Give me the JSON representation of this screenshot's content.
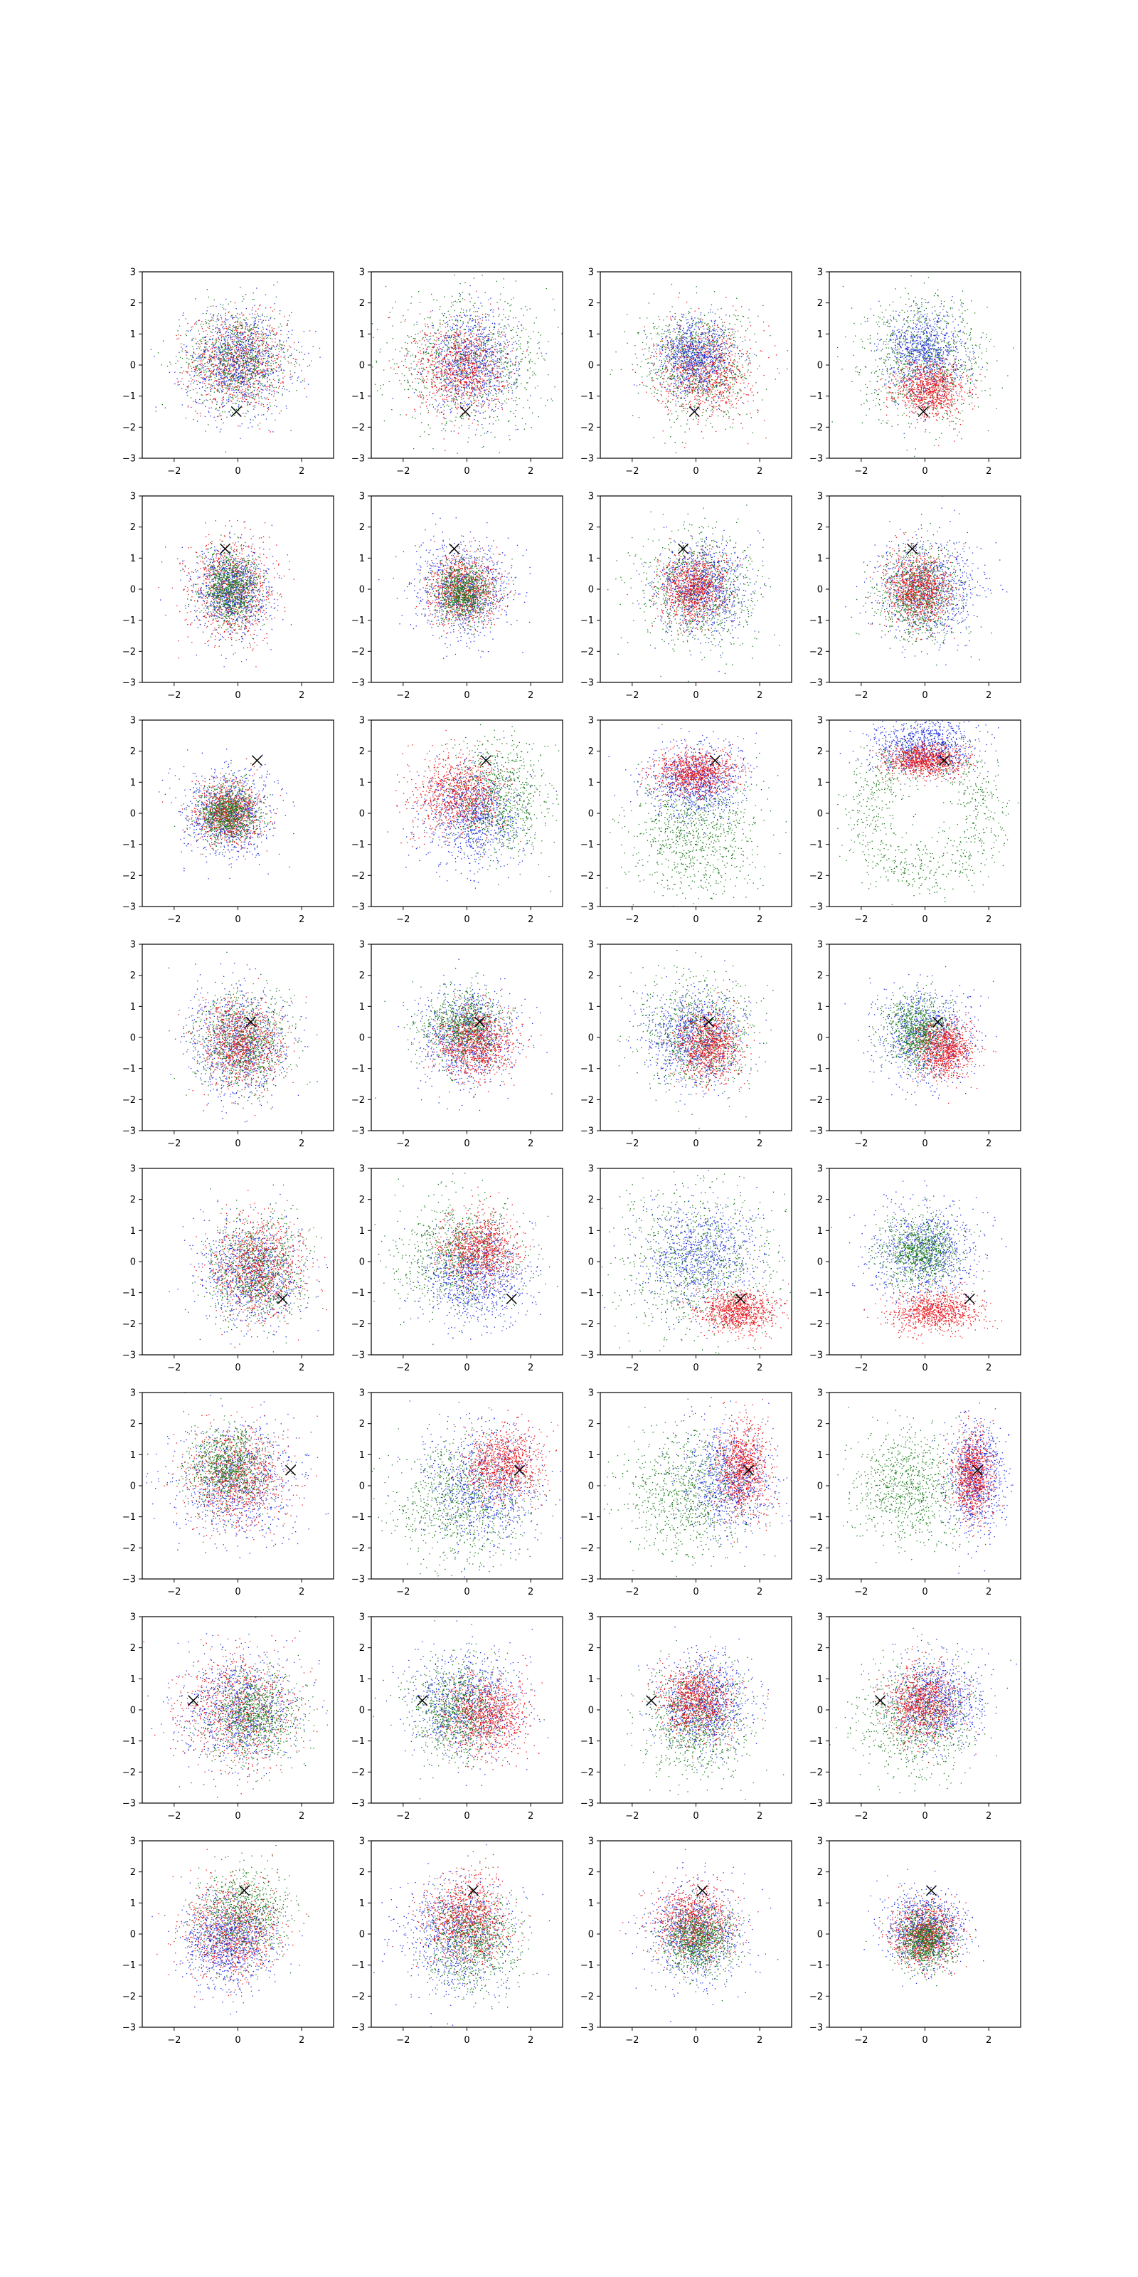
{
  "figure": {
    "rows": 8,
    "cols": 4,
    "background": "#ffffff"
  },
  "chart_data": {
    "type": "scatter",
    "xlim": [
      -3,
      3
    ],
    "ylim": [
      -3,
      3
    ],
    "xticks": [
      -2,
      0,
      2
    ],
    "yticks": [
      -3,
      -2,
      -1,
      0,
      1,
      2,
      3
    ],
    "xtick_labels": [
      "−2",
      "0",
      "2"
    ],
    "ytick_labels": [
      "−3",
      "−2",
      "−1",
      "0",
      "1",
      "2",
      "3"
    ],
    "title": "",
    "xlabel": "",
    "ylabel": "",
    "grid": false,
    "legend": "none",
    "colors": {
      "red": "#e8141a",
      "green": "#1a7a1a",
      "blue": "#2030e0",
      "marker": "#000000"
    },
    "marker_symbol": "x",
    "panels": [
      {
        "marker": [
          -0.05,
          -1.5
        ],
        "series": [
          {
            "color": "red",
            "cx": 0.0,
            "cy": 0.1,
            "sx": 0.75,
            "sy": 0.75
          },
          {
            "color": "green",
            "cx": 0.0,
            "cy": 0.2,
            "sx": 0.8,
            "sy": 0.8
          },
          {
            "color": "blue",
            "cx": 0.0,
            "cy": 0.1,
            "sx": 0.85,
            "sy": 0.85
          }
        ]
      },
      {
        "marker": [
          -0.05,
          -1.5
        ],
        "series": [
          {
            "color": "green",
            "cx": 0.0,
            "cy": 0.1,
            "sx": 1.3,
            "sy": 1.05
          },
          {
            "color": "blue",
            "cx": 0.2,
            "cy": 0.1,
            "sx": 0.7,
            "sy": 0.8
          },
          {
            "color": "red",
            "cx": -0.2,
            "cy": -0.1,
            "sx": 0.7,
            "sy": 0.75
          }
        ]
      },
      {
        "marker": [
          -0.05,
          -1.5
        ],
        "series": [
          {
            "color": "green",
            "cx": 0.0,
            "cy": 0.0,
            "sx": 0.9,
            "sy": 0.9
          },
          {
            "color": "red",
            "cx": 0.3,
            "cy": -0.2,
            "sx": 0.7,
            "sy": 0.75
          },
          {
            "color": "blue",
            "cx": 0.0,
            "cy": 0.3,
            "sx": 0.6,
            "sy": 0.6
          }
        ]
      },
      {
        "marker": [
          -0.05,
          -1.5
        ],
        "series": [
          {
            "color": "green",
            "cx": 0.0,
            "cy": 0.1,
            "sx": 1.0,
            "sy": 1.0
          },
          {
            "color": "blue",
            "cx": 0.0,
            "cy": 0.4,
            "sx": 0.6,
            "sy": 0.7
          },
          {
            "color": "red",
            "cx": 0.2,
            "cy": -0.8,
            "sx": 0.55,
            "sy": 0.45
          }
        ]
      },
      {
        "marker": [
          -0.4,
          1.3
        ],
        "series": [
          {
            "color": "red",
            "cx": -0.2,
            "cy": 0.0,
            "sx": 0.65,
            "sy": 0.8
          },
          {
            "color": "blue",
            "cx": -0.2,
            "cy": -0.1,
            "sx": 0.6,
            "sy": 0.7
          },
          {
            "color": "green",
            "cx": -0.2,
            "cy": 0.0,
            "sx": 0.45,
            "sy": 0.6
          }
        ]
      },
      {
        "marker": [
          -0.4,
          1.3
        ],
        "series": [
          {
            "color": "blue",
            "cx": -0.1,
            "cy": 0.0,
            "sx": 0.75,
            "sy": 0.75
          },
          {
            "color": "red",
            "cx": -0.1,
            "cy": 0.0,
            "sx": 0.55,
            "sy": 0.55
          },
          {
            "color": "green",
            "cx": -0.1,
            "cy": -0.1,
            "sx": 0.45,
            "sy": 0.45
          }
        ]
      },
      {
        "marker": [
          -0.4,
          1.3
        ],
        "series": [
          {
            "color": "green",
            "cx": 0.0,
            "cy": 0.0,
            "sx": 0.9,
            "sy": 0.95
          },
          {
            "color": "blue",
            "cx": 0.2,
            "cy": 0.0,
            "sx": 0.7,
            "sy": 0.75
          },
          {
            "color": "red",
            "cx": -0.1,
            "cy": 0.0,
            "sx": 0.5,
            "sy": 0.55
          }
        ]
      },
      {
        "marker": [
          -0.4,
          1.3
        ],
        "series": [
          {
            "color": "blue",
            "cx": 0.1,
            "cy": 0.0,
            "sx": 0.8,
            "sy": 0.8
          },
          {
            "color": "green",
            "cx": -0.2,
            "cy": -0.1,
            "sx": 0.65,
            "sy": 0.75
          },
          {
            "color": "red",
            "cx": -0.2,
            "cy": 0.0,
            "sx": 0.5,
            "sy": 0.55
          }
        ]
      },
      {
        "marker": [
          0.6,
          1.7
        ],
        "series": [
          {
            "color": "blue",
            "cx": -0.3,
            "cy": 0.0,
            "sx": 0.7,
            "sy": 0.7
          },
          {
            "color": "red",
            "cx": -0.3,
            "cy": 0.0,
            "sx": 0.5,
            "sy": 0.5
          },
          {
            "color": "green",
            "cx": -0.3,
            "cy": 0.0,
            "sx": 0.45,
            "sy": 0.45
          }
        ]
      },
      {
        "marker": [
          0.6,
          1.7
        ],
        "series": [
          {
            "color": "green",
            "cx": 1.0,
            "cy": 0.4,
            "sx": 0.8,
            "sy": 0.9
          },
          {
            "color": "blue",
            "cx": 0.2,
            "cy": -0.1,
            "sx": 0.8,
            "sy": 0.8
          },
          {
            "color": "red",
            "cx": -0.3,
            "cy": 0.6,
            "sx": 0.7,
            "sy": 0.65
          }
        ]
      },
      {
        "marker": [
          0.6,
          1.7
        ],
        "series": [
          {
            "color": "green",
            "cx": 0.0,
            "cy": -0.6,
            "sx": 1.0,
            "sy": 1.0
          },
          {
            "color": "blue",
            "cx": 0.0,
            "cy": 1.0,
            "sx": 0.8,
            "sy": 0.6
          },
          {
            "color": "red",
            "cx": 0.0,
            "cy": 1.3,
            "sx": 0.6,
            "sy": 0.35
          }
        ]
      },
      {
        "marker": [
          0.6,
          1.7
        ],
        "series": [
          {
            "color": "green",
            "cx": 0.0,
            "cy": 0.0,
            "ring": 1.9,
            "rs": 0.45
          },
          {
            "color": "blue",
            "cx": 0.0,
            "cy": 2.2,
            "sx": 0.8,
            "sy": 0.45
          },
          {
            "color": "red",
            "cx": 0.0,
            "cy": 1.7,
            "sx": 0.6,
            "sy": 0.25
          }
        ]
      },
      {
        "marker": [
          0.4,
          0.5
        ],
        "series": [
          {
            "color": "blue",
            "cx": 0.0,
            "cy": -0.2,
            "sx": 0.8,
            "sy": 0.85
          },
          {
            "color": "green",
            "cx": 0.2,
            "cy": -0.2,
            "sx": 0.7,
            "sy": 0.75
          },
          {
            "color": "red",
            "cx": 0.1,
            "cy": -0.2,
            "sx": 0.65,
            "sy": 0.7
          }
        ]
      },
      {
        "marker": [
          0.4,
          0.5
        ],
        "series": [
          {
            "color": "blue",
            "cx": 0.0,
            "cy": 0.0,
            "sx": 0.75,
            "sy": 0.8
          },
          {
            "color": "green",
            "cx": -0.1,
            "cy": 0.3,
            "sx": 0.65,
            "sy": 0.6
          },
          {
            "color": "red",
            "cx": 0.3,
            "cy": -0.2,
            "sx": 0.6,
            "sy": 0.55
          }
        ]
      },
      {
        "marker": [
          0.4,
          0.5
        ],
        "series": [
          {
            "color": "green",
            "cx": 0.0,
            "cy": 0.1,
            "sx": 0.85,
            "sy": 0.9
          },
          {
            "color": "blue",
            "cx": 0.0,
            "cy": 0.0,
            "sx": 0.75,
            "sy": 0.75
          },
          {
            "color": "red",
            "cx": 0.4,
            "cy": -0.3,
            "sx": 0.5,
            "sy": 0.55
          }
        ]
      },
      {
        "marker": [
          0.4,
          0.5
        ],
        "series": [
          {
            "color": "blue",
            "cx": 0.0,
            "cy": 0.0,
            "sx": 0.75,
            "sy": 0.75
          },
          {
            "color": "green",
            "cx": -0.2,
            "cy": 0.2,
            "sx": 0.5,
            "sy": 0.55
          },
          {
            "color": "red",
            "cx": 0.6,
            "cy": -0.4,
            "sx": 0.45,
            "sy": 0.45
          }
        ]
      },
      {
        "marker": [
          1.4,
          -1.2
        ],
        "series": [
          {
            "color": "blue",
            "cx": 0.4,
            "cy": -0.4,
            "sx": 0.8,
            "sy": 0.85
          },
          {
            "color": "green",
            "cx": 0.6,
            "cy": -0.3,
            "sx": 0.75,
            "sy": 0.8
          },
          {
            "color": "red",
            "cx": 0.6,
            "cy": -0.2,
            "sx": 0.7,
            "sy": 0.8
          }
        ]
      },
      {
        "marker": [
          1.4,
          -1.2
        ],
        "series": [
          {
            "color": "green",
            "cx": -0.3,
            "cy": 0.2,
            "sx": 0.95,
            "sy": 0.9
          },
          {
            "color": "blue",
            "cx": 0.3,
            "cy": -0.5,
            "sx": 0.8,
            "sy": 0.75
          },
          {
            "color": "red",
            "cx": 0.4,
            "cy": 0.4,
            "sx": 0.6,
            "sy": 0.6
          }
        ]
      },
      {
        "marker": [
          1.4,
          -1.2
        ],
        "series": [
          {
            "color": "green",
            "cx": 0.0,
            "cy": 0.0,
            "sx": 1.3,
            "sy": 1.2
          },
          {
            "color": "blue",
            "cx": 0.1,
            "cy": 0.2,
            "sx": 0.9,
            "sy": 0.9
          },
          {
            "color": "red",
            "cx": 1.3,
            "cy": -1.6,
            "sx": 0.6,
            "sy": 0.35
          }
        ]
      },
      {
        "marker": [
          1.4,
          -1.2
        ],
        "series": [
          {
            "color": "blue",
            "cx": 0.0,
            "cy": 0.3,
            "sx": 0.85,
            "sy": 0.8
          },
          {
            "color": "green",
            "cx": -0.1,
            "cy": 0.3,
            "sx": 0.6,
            "sy": 0.55
          },
          {
            "color": "red",
            "cx": 0.3,
            "cy": -1.6,
            "sx": 0.7,
            "sy": 0.35
          }
        ]
      },
      {
        "marker": [
          1.65,
          0.5
        ],
        "series": [
          {
            "color": "blue",
            "cx": 0.0,
            "cy": 0.1,
            "sx": 0.95,
            "sy": 0.95
          },
          {
            "color": "red",
            "cx": -0.1,
            "cy": 0.3,
            "sx": 0.8,
            "sy": 0.8
          },
          {
            "color": "green",
            "cx": -0.3,
            "cy": 0.6,
            "sx": 0.6,
            "sy": 0.6
          }
        ]
      },
      {
        "marker": [
          1.65,
          0.5
        ],
        "series": [
          {
            "color": "green",
            "cx": -0.2,
            "cy": -0.5,
            "sx": 1.0,
            "sy": 1.0
          },
          {
            "color": "blue",
            "cx": 0.5,
            "cy": 0.0,
            "sx": 0.9,
            "sy": 0.95
          },
          {
            "color": "red",
            "cx": 1.2,
            "cy": 0.7,
            "sx": 0.6,
            "sy": 0.55
          }
        ]
      },
      {
        "marker": [
          1.65,
          0.5
        ],
        "series": [
          {
            "color": "green",
            "cx": -0.3,
            "cy": -0.2,
            "sx": 1.0,
            "sy": 1.0
          },
          {
            "color": "blue",
            "cx": 1.0,
            "cy": 0.2,
            "sx": 0.7,
            "sy": 0.85
          },
          {
            "color": "red",
            "cx": 1.5,
            "cy": 0.5,
            "sx": 0.4,
            "sy": 0.75
          }
        ]
      },
      {
        "marker": [
          1.65,
          0.5
        ],
        "series": [
          {
            "color": "green",
            "cx": -0.5,
            "cy": 0.0,
            "sx": 0.85,
            "sy": 0.9
          },
          {
            "color": "blue",
            "cx": 1.6,
            "cy": 0.3,
            "sx": 0.45,
            "sy": 0.85
          },
          {
            "color": "red",
            "cx": 1.5,
            "cy": 0.3,
            "sx": 0.3,
            "sy": 0.7
          }
        ]
      },
      {
        "marker": [
          -1.4,
          0.3
        ],
        "series": [
          {
            "color": "red",
            "cx": 0.0,
            "cy": 0.0,
            "sx": 0.9,
            "sy": 0.9
          },
          {
            "color": "blue",
            "cx": 0.0,
            "cy": 0.0,
            "sx": 0.9,
            "sy": 0.9
          },
          {
            "color": "green",
            "cx": 0.5,
            "cy": -0.2,
            "sx": 0.7,
            "sy": 0.7
          }
        ]
      },
      {
        "marker": [
          -1.4,
          0.3
        ],
        "series": [
          {
            "color": "blue",
            "cx": 0.0,
            "cy": 0.2,
            "sx": 0.9,
            "sy": 0.85
          },
          {
            "color": "green",
            "cx": -0.3,
            "cy": 0.0,
            "sx": 0.7,
            "sy": 0.8
          },
          {
            "color": "red",
            "cx": 0.6,
            "cy": -0.2,
            "sx": 0.65,
            "sy": 0.6
          }
        ]
      },
      {
        "marker": [
          -1.4,
          0.3
        ],
        "series": [
          {
            "color": "green",
            "cx": 0.0,
            "cy": -0.3,
            "sx": 0.8,
            "sy": 0.85
          },
          {
            "color": "blue",
            "cx": 0.3,
            "cy": 0.2,
            "sx": 0.75,
            "sy": 0.75
          },
          {
            "color": "red",
            "cx": 0.0,
            "cy": 0.3,
            "sx": 0.55,
            "sy": 0.6
          }
        ]
      },
      {
        "marker": [
          -1.4,
          0.3
        ],
        "series": [
          {
            "color": "green",
            "cx": -0.3,
            "cy": -0.3,
            "sx": 0.9,
            "sy": 0.9
          },
          {
            "color": "blue",
            "cx": 0.4,
            "cy": 0.3,
            "sx": 0.7,
            "sy": 0.7
          },
          {
            "color": "red",
            "cx": -0.1,
            "cy": 0.2,
            "sx": 0.55,
            "sy": 0.6
          }
        ]
      },
      {
        "marker": [
          0.2,
          1.4
        ],
        "series": [
          {
            "color": "green",
            "cx": 0.1,
            "cy": 0.6,
            "sx": 0.75,
            "sy": 0.75
          },
          {
            "color": "red",
            "cx": -0.2,
            "cy": 0.1,
            "sx": 0.75,
            "sy": 0.75
          },
          {
            "color": "blue",
            "cx": -0.3,
            "cy": -0.3,
            "sx": 0.7,
            "sy": 0.7
          }
        ]
      },
      {
        "marker": [
          0.2,
          1.4
        ],
        "series": [
          {
            "color": "blue",
            "cx": -0.3,
            "cy": 0.0,
            "sx": 0.9,
            "sy": 0.9
          },
          {
            "color": "green",
            "cx": 0.2,
            "cy": -0.2,
            "sx": 0.7,
            "sy": 0.75
          },
          {
            "color": "red",
            "cx": 0.0,
            "cy": 0.5,
            "sx": 0.65,
            "sy": 0.7
          }
        ]
      },
      {
        "marker": [
          0.2,
          1.4
        ],
        "series": [
          {
            "color": "blue",
            "cx": 0.0,
            "cy": 0.0,
            "sx": 0.75,
            "sy": 0.75
          },
          {
            "color": "red",
            "cx": 0.0,
            "cy": 0.4,
            "sx": 0.6,
            "sy": 0.6
          },
          {
            "color": "green",
            "cx": 0.1,
            "cy": -0.2,
            "sx": 0.55,
            "sy": 0.55
          }
        ]
      },
      {
        "marker": [
          0.2,
          1.4
        ],
        "series": [
          {
            "color": "blue",
            "cx": 0.0,
            "cy": 0.2,
            "sx": 0.6,
            "sy": 0.6
          },
          {
            "color": "red",
            "cx": 0.0,
            "cy": 0.0,
            "sx": 0.5,
            "sy": 0.5
          },
          {
            "color": "green",
            "cx": 0.0,
            "cy": -0.2,
            "sx": 0.45,
            "sy": 0.45
          }
        ]
      }
    ]
  }
}
